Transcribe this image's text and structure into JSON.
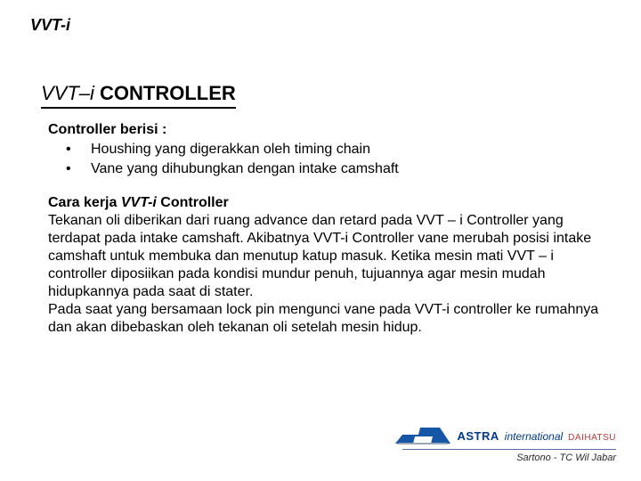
{
  "header": {
    "label": "VVT-i"
  },
  "title": {
    "ital": "VVT–i",
    "rest": " CONTROLLER"
  },
  "section1": {
    "heading": "Controller berisi :",
    "bullets": [
      "Houshing yang digerakkan oleh timing chain",
      "Vane yang dihubungkan dengan intake camshaft"
    ]
  },
  "section2": {
    "heading_prefix": "Cara kerja ",
    "heading_vvti": "VVT-i",
    "heading_suffix": " Controller",
    "paragraph": "Tekanan oli diberikan dari ruang advance dan retard pada VVT – i Controller yang terdapat pada intake camshaft. Akibatnya VVT-i Controller vane merubah  posisi intake camshaft untuk membuka dan menutup katup masuk. Ketika mesin mati VVT – i controller diposiikan pada kondisi mundur penuh, tujuannya agar mesin mudah hidupkannya pada saat di stater.\nPada saat yang bersamaan lock pin mengunci vane pada VVT-i controller ke rumahnya dan akan dibebaskan oleh tekanan oli setelah mesin hidup."
  },
  "footer": {
    "astra": "ASTRA",
    "intl": "international",
    "daihatsu": "DAIHATSU",
    "author": "Sartono - TC Wil Jabar"
  },
  "colors": {
    "text": "#000000",
    "astra_blue": "#003a8c",
    "daihatsu_red": "#c23a3a",
    "rule": "#5b6aa0",
    "logo_blue": "#1656a6",
    "logo_gray": "#9aa7b5"
  }
}
